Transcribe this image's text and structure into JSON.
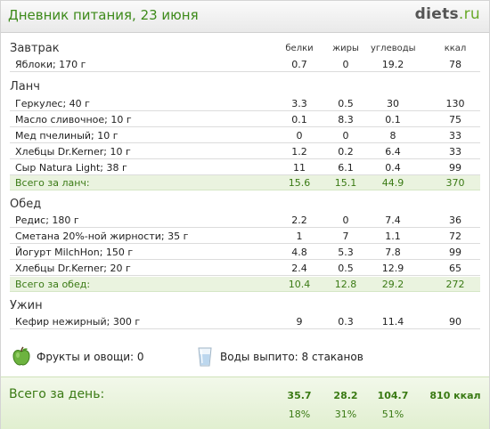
{
  "header": {
    "title": "Дневник питания, 23 июня",
    "logo_main": "diets",
    "logo_suffix": ".ru"
  },
  "columns": [
    "белки",
    "жиры",
    "углеводы",
    "ккал"
  ],
  "meals": [
    {
      "title": "Завтрак",
      "rows": [
        {
          "name": "Яблоки; 170 г",
          "protein": "0.7",
          "fat": "0",
          "carbs": "19.2",
          "kcal": "78"
        }
      ]
    },
    {
      "title": "Ланч",
      "rows": [
        {
          "name": "Геркулес; 40 г",
          "protein": "3.3",
          "fat": "0.5",
          "carbs": "30",
          "kcal": "130"
        },
        {
          "name": "Масло сливочное; 10 г",
          "protein": "0.1",
          "fat": "8.3",
          "carbs": "0.1",
          "kcal": "75"
        },
        {
          "name": "Мед пчелиный; 10 г",
          "protein": "0",
          "fat": "0",
          "carbs": "8",
          "kcal": "33"
        },
        {
          "name": "Хлебцы Dr.Kerner; 10 г",
          "protein": "1.2",
          "fat": "0.2",
          "carbs": "6.4",
          "kcal": "33"
        },
        {
          "name": "Сыр Natura Light; 38 г",
          "protein": "11",
          "fat": "6.1",
          "carbs": "0.4",
          "kcal": "99"
        }
      ],
      "total": {
        "name": "Всего за ланч:",
        "protein": "15.6",
        "fat": "15.1",
        "carbs": "44.9",
        "kcal": "370"
      }
    },
    {
      "title": "Обед",
      "rows": [
        {
          "name": "Редис; 180 г",
          "protein": "2.2",
          "fat": "0",
          "carbs": "7.4",
          "kcal": "36"
        },
        {
          "name": "Сметана 20%-ной жирности; 35 г",
          "protein": "1",
          "fat": "7",
          "carbs": "1.1",
          "kcal": "72"
        },
        {
          "name": "Йогурт MilchHon; 150 г",
          "protein": "4.8",
          "fat": "5.3",
          "carbs": "7.8",
          "kcal": "99"
        },
        {
          "name": "Хлебцы Dr.Kerner; 20 г",
          "protein": "2.4",
          "fat": "0.5",
          "carbs": "12.9",
          "kcal": "65"
        }
      ],
      "total": {
        "name": "Всего за обед:",
        "protein": "10.4",
        "fat": "12.8",
        "carbs": "29.2",
        "kcal": "272"
      }
    },
    {
      "title": "Ужин",
      "rows": [
        {
          "name": "Кефир нежирный; 300 г",
          "protein": "9",
          "fat": "0.3",
          "carbs": "11.4",
          "kcal": "90"
        }
      ]
    }
  ],
  "extras": {
    "fruits_label": "Фрукты и овощи: 0",
    "water_label": "Воды выпито: 8 стаканов",
    "fruits_icon": "green-apple-icon",
    "water_icon": "water-glass-icon"
  },
  "day_total": {
    "label": "Всего за день:",
    "protein": "35.7",
    "fat": "28.2",
    "carbs": "104.7",
    "kcal": "810 ккал",
    "protein_pct": "18%",
    "fat_pct": "31%",
    "carbs_pct": "51%"
  },
  "colors": {
    "accent_green": "#3d8a1a",
    "total_bg": "#eaf3df",
    "logo_ru": "#6aaa2a"
  }
}
